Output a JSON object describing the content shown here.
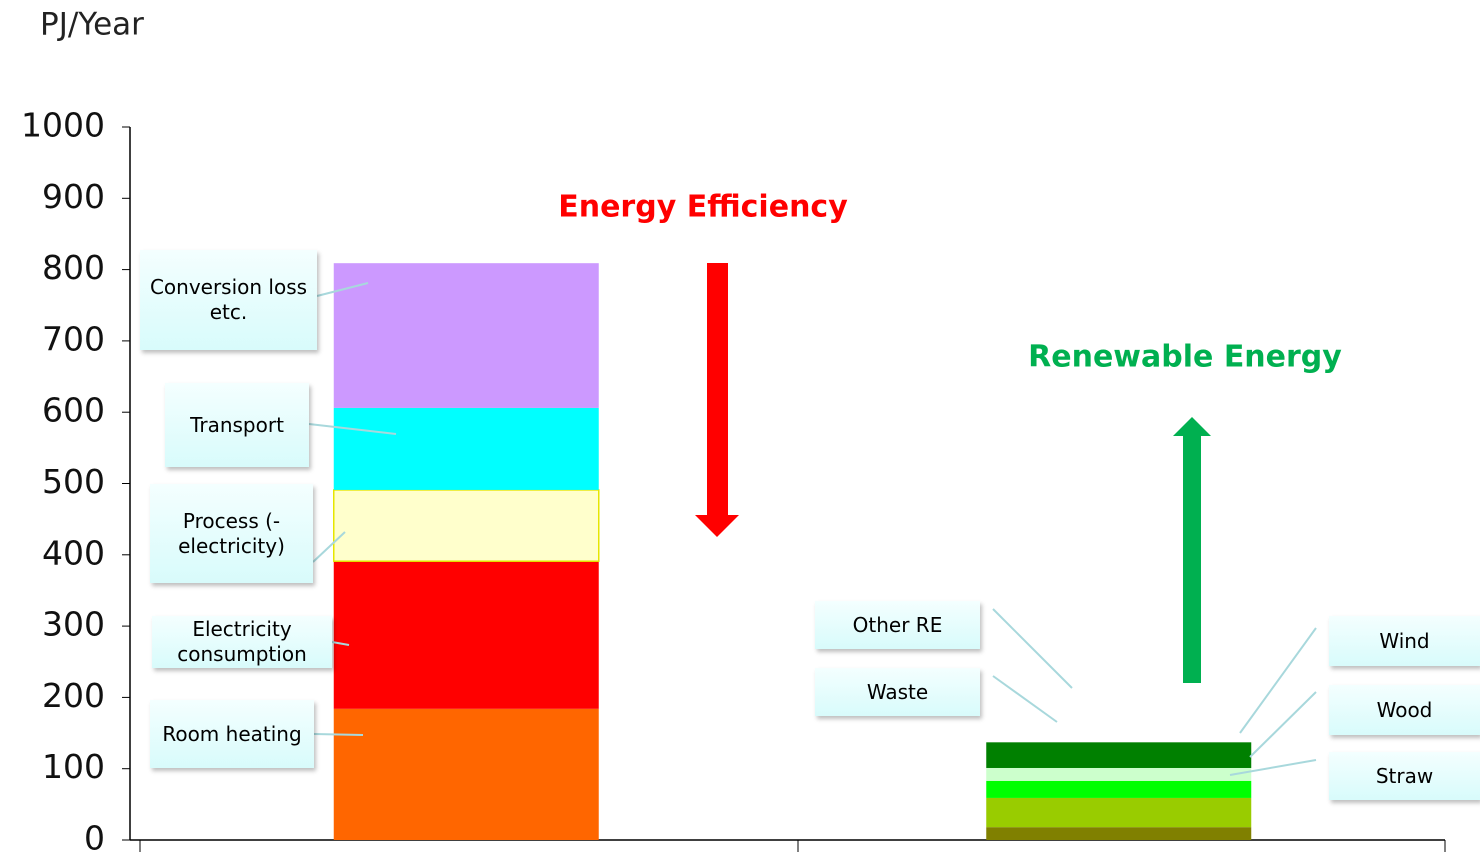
{
  "chart_data": {
    "type": "stacked_bar",
    "y_label": "PJ/Year",
    "annotations": [
      "Energy Efficiency",
      "Renewable Energy"
    ],
    "categories": [
      null,
      null
    ],
    "ylim": [
      0,
      1000
    ],
    "yticks": [
      0,
      100,
      200,
      300,
      400,
      500,
      600,
      700,
      800,
      900,
      1000
    ],
    "series": [
      {
        "name": "Room heating",
        "color": "#ff6600",
        "values": [
          184,
          null
        ]
      },
      {
        "name": "Electricity consumption",
        "color": "#ff0000",
        "values": [
          207,
          null
        ]
      },
      {
        "name": "Process (-electricity)",
        "color": "#ffffcc",
        "values": [
          100,
          null
        ]
      },
      {
        "name": "Transport",
        "color": "#00ffff",
        "values": [
          115,
          null
        ]
      },
      {
        "name": "Conversion loss etc.",
        "color": "#cc99ff",
        "values": [
          203,
          null
        ]
      },
      {
        "name": "Other RE",
        "color": "#808000",
        "values": [
          null,
          18
        ]
      },
      {
        "name": "Waste",
        "color": "#99cc00",
        "values": [
          null,
          41
        ]
      },
      {
        "name": "Straw",
        "color": "#00ff00",
        "values": [
          null,
          24
        ]
      },
      {
        "name": "Wood",
        "color": "#ccffcc",
        "values": [
          null,
          18
        ]
      },
      {
        "name": "Wind",
        "color": "#008000",
        "values": [
          null,
          36
        ]
      }
    ]
  }
}
